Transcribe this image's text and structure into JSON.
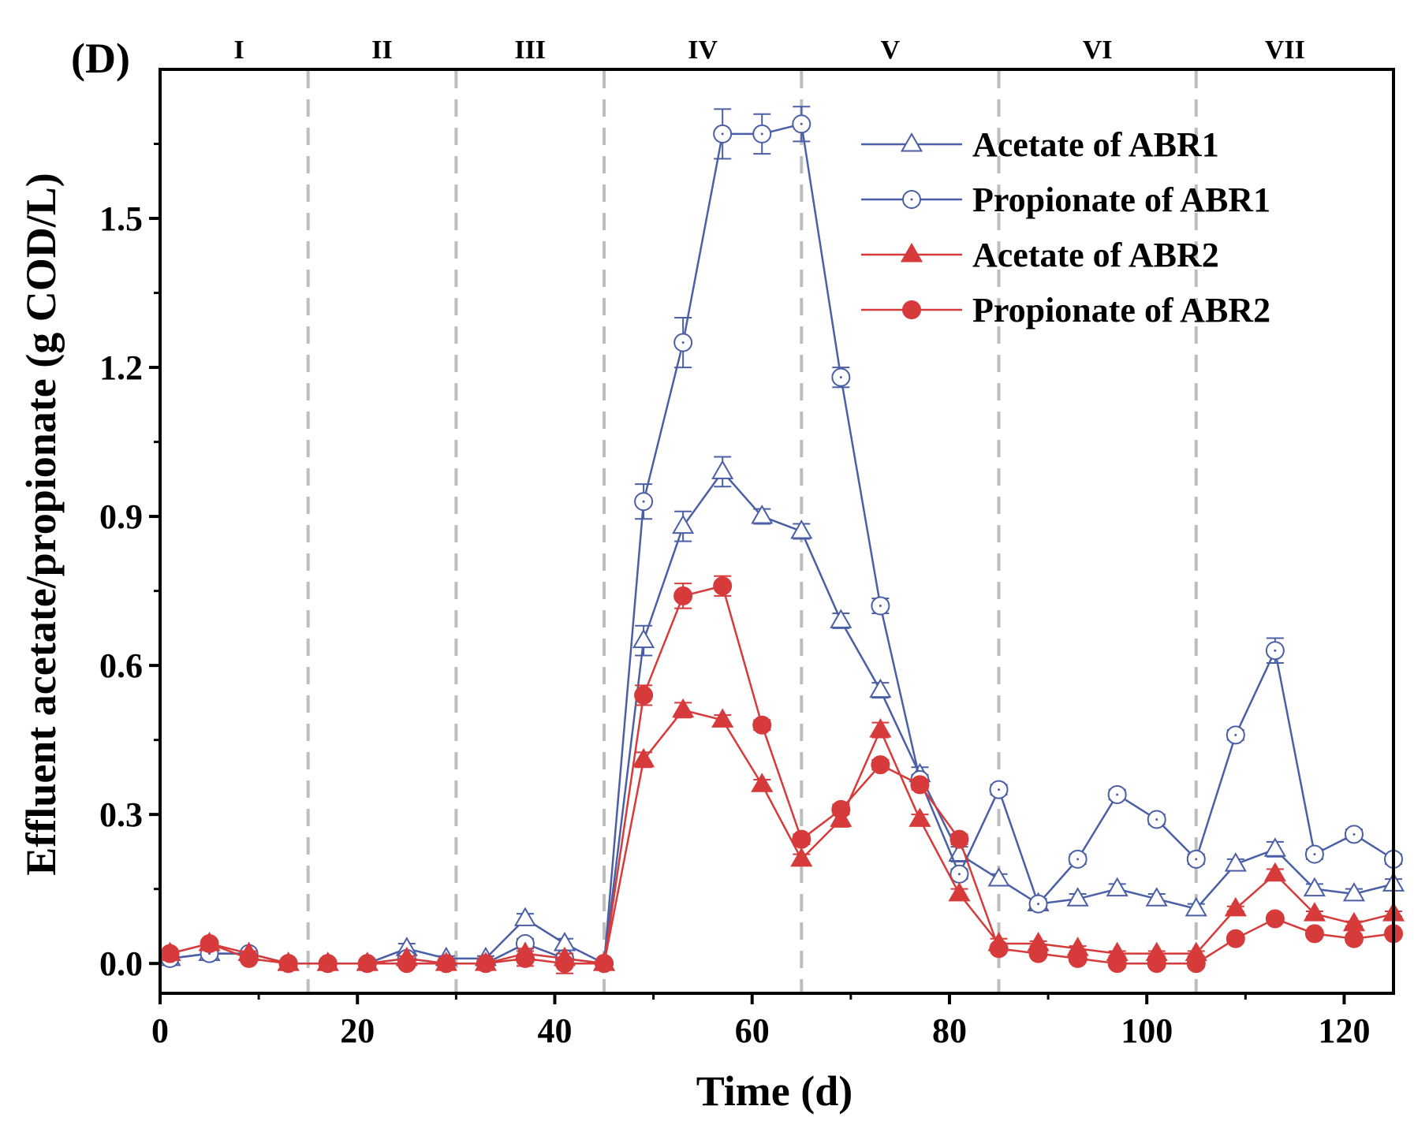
{
  "chart_data": {
    "type": "line",
    "panel_label": "(D)",
    "xlabel": "Time (d)",
    "ylabel": "Effluent acetate/propionate (g COD/L)",
    "xlim": [
      0,
      125
    ],
    "ylim": [
      -0.06,
      1.8
    ],
    "xticks": [
      0,
      20,
      40,
      60,
      80,
      100,
      120
    ],
    "yticks": [
      0.0,
      0.3,
      0.6,
      0.9,
      1.2,
      1.5
    ],
    "ytick_labels": [
      "0.0",
      "0.3",
      "0.6",
      "0.9",
      "1.2",
      "1.5"
    ],
    "phase_boundaries": [
      15,
      30,
      45,
      65,
      85,
      105
    ],
    "phases": [
      {
        "label": "I",
        "center": 8
      },
      {
        "label": "II",
        "center": 22.5
      },
      {
        "label": "III",
        "center": 37.5
      },
      {
        "label": "IV",
        "center": 55
      },
      {
        "label": "V",
        "center": 74
      },
      {
        "label": "VI",
        "center": 95
      },
      {
        "label": "VII",
        "center": 114
      }
    ],
    "legend_position": "top-right",
    "x": [
      1,
      5,
      9,
      13,
      17,
      21,
      25,
      29,
      33,
      37,
      41,
      45,
      49,
      53,
      57,
      61,
      65,
      69,
      73,
      77,
      81,
      85,
      89,
      93,
      97,
      101,
      105,
      109,
      113,
      117,
      121,
      125
    ],
    "series": [
      {
        "name": "Acetate of ABR1",
        "color": "#4a5fa5",
        "marker": "triangle-open",
        "values": [
          0.01,
          0.02,
          0.02,
          0.0,
          0.0,
          0.0,
          0.03,
          0.01,
          0.01,
          0.09,
          0.04,
          0.0,
          0.65,
          0.88,
          0.99,
          0.9,
          0.87,
          0.69,
          0.55,
          0.38,
          0.22,
          0.17,
          0.12,
          0.13,
          0.15,
          0.13,
          0.11,
          0.2,
          0.23,
          0.15,
          0.14,
          0.16
        ],
        "errors": [
          0.005,
          0.005,
          0.005,
          0.005,
          0.005,
          0.005,
          0.01,
          0.005,
          0.005,
          0.01,
          0.01,
          0.005,
          0.03,
          0.03,
          0.03,
          0.015,
          0.015,
          0.015,
          0.015,
          0.015,
          0.015,
          0.01,
          0.01,
          0.01,
          0.01,
          0.01,
          0.01,
          0.01,
          0.015,
          0.01,
          0.01,
          0.01
        ]
      },
      {
        "name": "Propionate of ABR1",
        "color": "#4a5fa5",
        "marker": "circle-open",
        "values": [
          0.01,
          0.02,
          0.02,
          0.0,
          0.0,
          0.0,
          0.01,
          0.0,
          0.0,
          0.04,
          0.01,
          0.0,
          0.93,
          1.25,
          1.67,
          1.67,
          1.69,
          1.18,
          0.72,
          0.37,
          0.18,
          0.35,
          0.12,
          0.21,
          0.34,
          0.29,
          0.21,
          0.46,
          0.63,
          0.22,
          0.26,
          0.21
        ],
        "errors": [
          0.005,
          0.005,
          0.005,
          0.005,
          0.005,
          0.005,
          0.005,
          0.005,
          0.005,
          0.01,
          0.01,
          0.005,
          0.035,
          0.05,
          0.05,
          0.04,
          0.035,
          0.02,
          0.015,
          0.01,
          0.01,
          0.01,
          0.01,
          0.01,
          0.01,
          0.01,
          0.01,
          0.01,
          0.025,
          0.01,
          0.01,
          0.01
        ]
      },
      {
        "name": "Acetate of ABR2",
        "color": "#d63a3a",
        "marker": "triangle-filled",
        "values": [
          0.02,
          0.04,
          0.02,
          0.0,
          0.0,
          0.0,
          0.01,
          0.0,
          0.0,
          0.02,
          0.01,
          0.0,
          0.41,
          0.51,
          0.49,
          0.36,
          0.21,
          0.29,
          0.47,
          0.29,
          0.14,
          0.04,
          0.04,
          0.03,
          0.02,
          0.02,
          0.02,
          0.11,
          0.18,
          0.1,
          0.08,
          0.1
        ],
        "errors": [
          0.005,
          0.005,
          0.005,
          0.005,
          0.005,
          0.005,
          0.005,
          0.005,
          0.005,
          0.01,
          0.01,
          0.005,
          0.015,
          0.015,
          0.01,
          0.01,
          0.01,
          0.015,
          0.015,
          0.01,
          0.01,
          0.01,
          0.005,
          0.005,
          0.005,
          0.005,
          0.005,
          0.005,
          0.01,
          0.005,
          0.005,
          0.005
        ]
      },
      {
        "name": "Propionate of ABR2",
        "color": "#d63a3a",
        "marker": "circle-filled",
        "values": [
          0.02,
          0.04,
          0.01,
          0.0,
          0.0,
          0.0,
          0.0,
          0.0,
          0.0,
          0.01,
          0.0,
          0.0,
          0.54,
          0.74,
          0.76,
          0.48,
          0.25,
          0.31,
          0.4,
          0.36,
          0.25,
          0.03,
          0.02,
          0.01,
          0.0,
          0.0,
          0.0,
          0.05,
          0.09,
          0.06,
          0.05,
          0.06
        ],
        "errors": [
          0.005,
          0.005,
          0.005,
          0.005,
          0.005,
          0.005,
          0.005,
          0.005,
          0.005,
          0.015,
          0.02,
          0.005,
          0.02,
          0.025,
          0.02,
          0.01,
          0.01,
          0.01,
          0.01,
          0.01,
          0.01,
          0.005,
          0.005,
          0.005,
          0.005,
          0.005,
          0.005,
          0.005,
          0.005,
          0.005,
          0.005,
          0.005
        ]
      }
    ]
  }
}
